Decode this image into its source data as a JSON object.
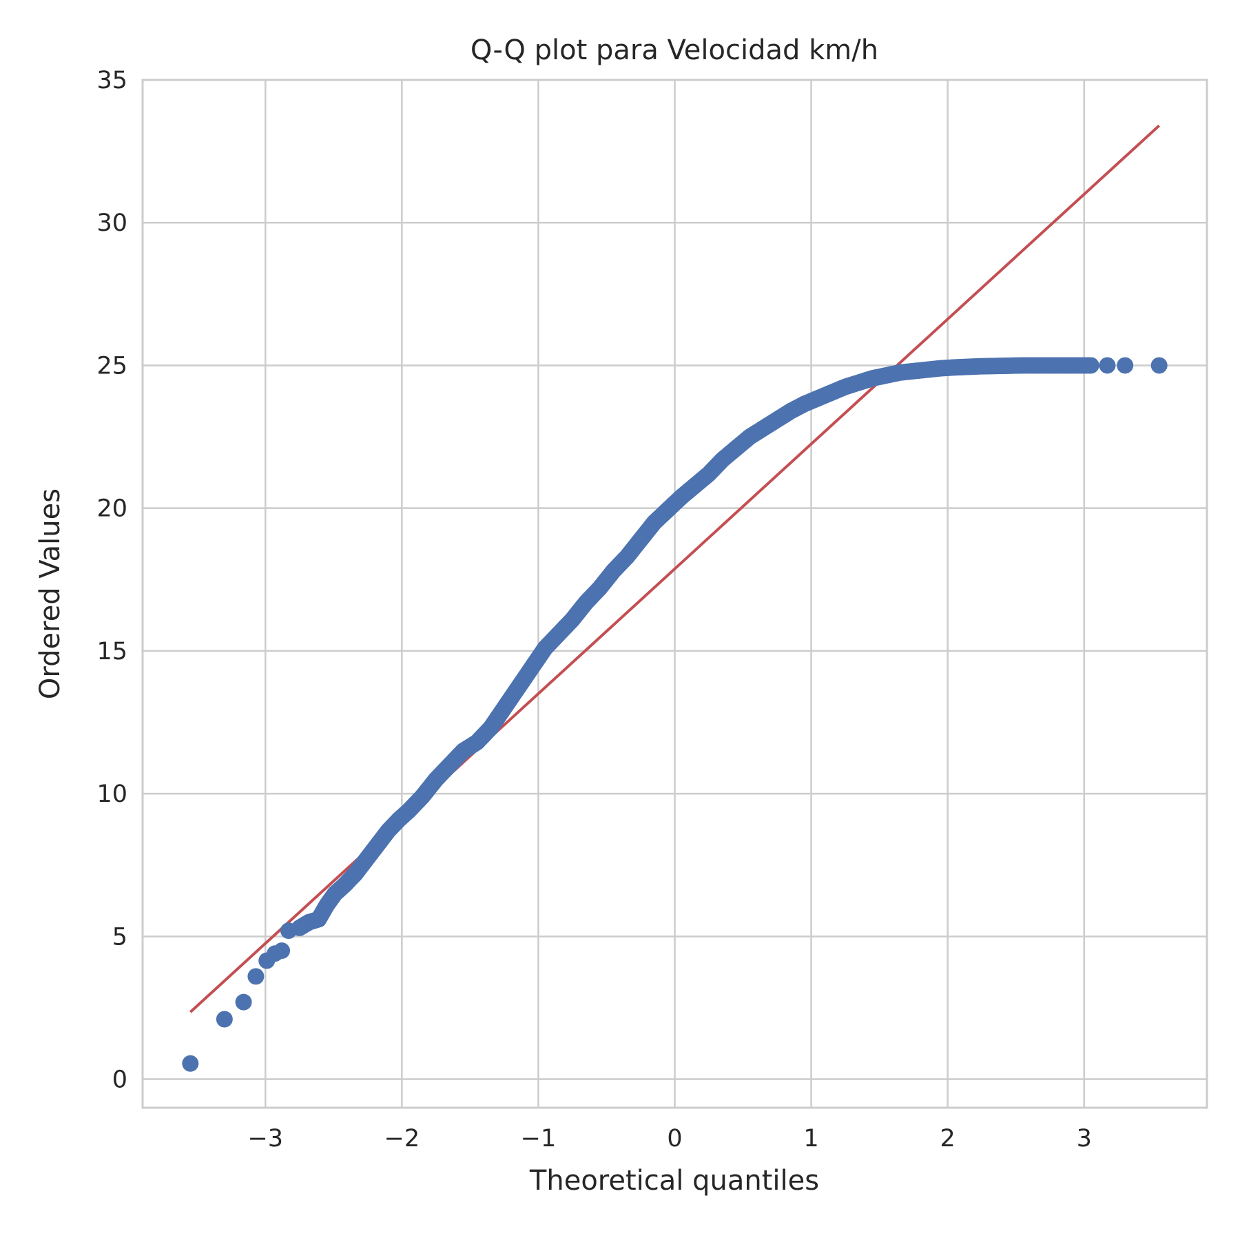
{
  "chart_data": {
    "type": "scatter",
    "title": "Q-Q plot para Velocidad km/h",
    "xlabel": "Theoretical quantiles",
    "ylabel": "Ordered Values",
    "xlim": [
      -3.9,
      3.9
    ],
    "ylim": [
      -1.0,
      35.0
    ],
    "xticks": [
      -3,
      -2,
      -1,
      0,
      1,
      2,
      3
    ],
    "xtick_labels": [
      "−3",
      "−2",
      "−1",
      "0",
      "1",
      "2",
      "3"
    ],
    "yticks": [
      0,
      5,
      10,
      15,
      20,
      25,
      30,
      35
    ],
    "ytick_labels": [
      "0",
      "5",
      "10",
      "15",
      "20",
      "25",
      "30",
      "35"
    ],
    "grid": true,
    "series": [
      {
        "kind": "points",
        "color": "#4c72b0",
        "x": [
          -3.55,
          -3.3,
          -3.16,
          -3.07,
          -2.99,
          -2.93,
          -2.88,
          -2.83,
          -2.75,
          -2.68,
          -2.61,
          -2.55,
          -2.49,
          -2.42,
          -2.34,
          -2.26,
          -2.18,
          -2.1,
          -2.02,
          -1.95,
          -1.85,
          -1.75,
          -1.65,
          -1.55,
          -1.45,
          -1.35,
          -1.25,
          -1.15,
          -1.05,
          -0.95,
          -0.85,
          -0.75,
          -0.65,
          -0.55,
          -0.45,
          -0.35,
          -0.25,
          -0.15,
          -0.05,
          0.05,
          0.15,
          0.25,
          0.35,
          0.45,
          0.55,
          0.65,
          0.75,
          0.85,
          0.95,
          1.05,
          1.15,
          1.25,
          1.35,
          1.45,
          1.55,
          1.65,
          1.75,
          1.85,
          1.95,
          2.05,
          2.15,
          2.25,
          2.35,
          2.45,
          2.55,
          2.65,
          2.75,
          2.85,
          2.95,
          3.05,
          3.17,
          3.3,
          3.55
        ],
        "y": [
          0.55,
          2.1,
          2.7,
          3.6,
          4.15,
          4.4,
          4.5,
          5.2,
          5.3,
          5.5,
          5.6,
          6.1,
          6.5,
          6.8,
          7.2,
          7.7,
          8.2,
          8.7,
          9.1,
          9.4,
          9.9,
          10.5,
          11.0,
          11.5,
          11.8,
          12.3,
          13.0,
          13.7,
          14.4,
          15.1,
          15.6,
          16.1,
          16.7,
          17.2,
          17.8,
          18.3,
          18.9,
          19.5,
          19.95,
          20.4,
          20.8,
          21.2,
          21.7,
          22.1,
          22.5,
          22.8,
          23.1,
          23.4,
          23.65,
          23.85,
          24.05,
          24.25,
          24.4,
          24.55,
          24.65,
          24.75,
          24.8,
          24.85,
          24.9,
          24.93,
          24.95,
          24.97,
          24.98,
          24.99,
          25.0,
          25.0,
          25.0,
          25.0,
          25.0,
          25.0,
          25.0,
          25.0,
          25.0
        ]
      },
      {
        "kind": "fit-line",
        "color": "#c44e52",
        "x": [
          -3.55,
          3.55
        ],
        "y": [
          2.35,
          33.4
        ]
      }
    ]
  }
}
